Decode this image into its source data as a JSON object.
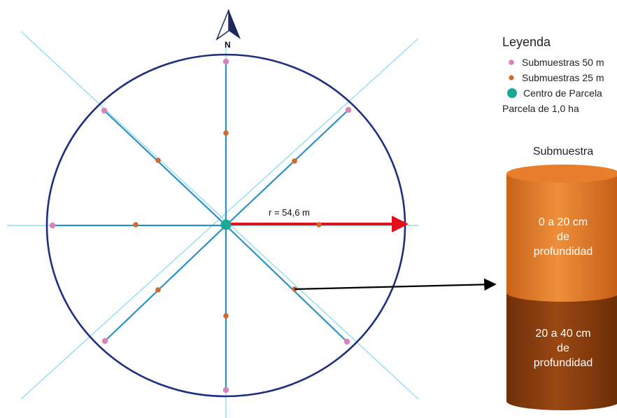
{
  "compass": {
    "label": "N"
  },
  "radius_label": "r = 54,6 m",
  "legend": {
    "title": "Leyenda",
    "items": [
      {
        "label": "Submuestras 50 m",
        "color": "#d983b8",
        "icon": "pink-dot"
      },
      {
        "label": "Submuestras 25 m",
        "color": "#d06a2a",
        "icon": "orange-dot"
      },
      {
        "label": "Centro de Parcela",
        "color": "#1aa898",
        "icon": "teal-dot"
      }
    ],
    "note": "Parcela de 1,0 ha"
  },
  "core": {
    "title": "Submuestra",
    "top_layer": {
      "line1": "0 a 20 cm",
      "line2": "de",
      "line3": "profundidad",
      "color": "#e07a28"
    },
    "bottom_layer": {
      "line1": "20 a 40 cm",
      "line2": "de",
      "line3": "profundidad",
      "color": "#8a3e0c"
    }
  },
  "colors": {
    "circle": "#1f2f80",
    "transect": "#2a8fc8",
    "guide": "#8fe0f0",
    "radius_arrow": "#e0111b"
  }
}
